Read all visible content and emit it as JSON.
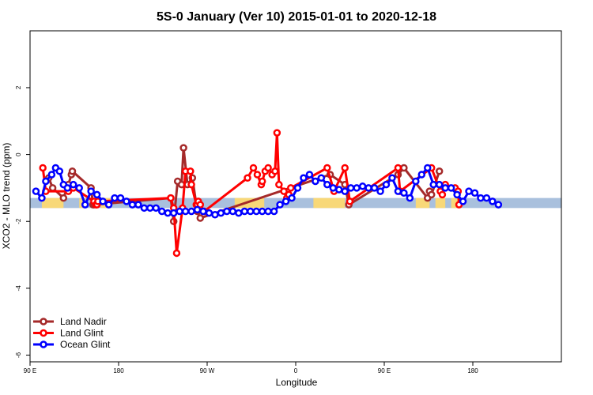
{
  "chart_data": {
    "type": "line",
    "title": "5S-0 January (Ver 10)   2015-01-01 to 2020-12-18",
    "xlabel": "Longitude",
    "ylabel": "XCO2 - MLO trend (ppm)",
    "xlim": [
      -90,
      180
    ],
    "ylim": [
      -6.2,
      3.7
    ],
    "x_ticks": [
      {
        "value": -90,
        "label": "90 E"
      },
      {
        "value": -45,
        "label": "180"
      },
      {
        "value": 0,
        "label": "90 W"
      },
      {
        "value": 45,
        "label": "0"
      },
      {
        "value": 90,
        "label": "90 E"
      },
      {
        "value": 135,
        "label": "180"
      }
    ],
    "y_ticks": [
      {
        "value": -6,
        "label": "-6"
      },
      {
        "value": -4,
        "label": "-4"
      },
      {
        "value": -2,
        "label": "-2"
      },
      {
        "value": 0,
        "label": "0"
      },
      {
        "value": 2,
        "label": "2"
      }
    ],
    "legend_position": "bottom-left",
    "background_band": {
      "y_min": -1.6,
      "y_max": -1.3,
      "color": "#a9c0dd"
    },
    "land_color": "#f8d878",
    "land_segments": [
      {
        "x0": -84,
        "x1": -73
      },
      {
        "x0": -65,
        "x1": -62
      },
      {
        "x0": -54,
        "x1": -49
      },
      {
        "x0": 14,
        "x1": 29
      },
      {
        "x0": 54,
        "x1": 70
      },
      {
        "x0": 106,
        "x1": 113
      },
      {
        "x0": 116,
        "x1": 121
      },
      {
        "x0": 124,
        "x1": 128
      }
    ],
    "series": [
      {
        "name": "Land Nadir",
        "color": "#a52a2a",
        "x": [
          -80.5,
          -78.5,
          -73,
          -70.5,
          -69,
          -68.5,
          -59,
          -58,
          -57.5,
          -18.5,
          -17,
          -15,
          -13,
          -12,
          -10,
          -7.5,
          -5,
          -3.5,
          62.5,
          70,
          72,
          97,
          100,
          112,
          113,
          114,
          118
        ],
        "values": [
          -0.7,
          -1.0,
          -1.3,
          -0.9,
          -0.6,
          -0.5,
          -1.0,
          -1.5,
          -1.5,
          -1.3,
          -2.0,
          -0.8,
          -0.9,
          0.2,
          -0.9,
          -0.7,
          -1.7,
          -1.9,
          -0.6,
          -0.9,
          -1.5,
          -0.6,
          -0.4,
          -1.3,
          -1.1,
          -1.2,
          -0.5
        ]
      },
      {
        "name": "Land Glint",
        "color": "#ff0000",
        "x": [
          -83.5,
          -82,
          -70.5,
          -69,
          -68,
          -57.5,
          -56.5,
          -56,
          -55.5,
          -18.5,
          -17,
          -15.5,
          -12.5,
          -11,
          -8.5,
          -8,
          -5.5,
          -5,
          -4.5,
          -3.5,
          -1.5,
          20.5,
          23.5,
          25.5,
          27.5,
          28,
          29.5,
          31,
          33,
          34.5,
          35.5,
          36.5,
          39,
          40.5,
          41.5,
          42.5,
          61,
          64.5,
          70,
          72.5,
          97,
          98,
          114,
          118.5,
          119.5,
          121,
          126,
          127.5,
          128
        ],
        "values": [
          -0.4,
          -1.1,
          -1.1,
          -1.0,
          -1.0,
          -1.4,
          -1.5,
          -1.5,
          -1.4,
          -1.3,
          -1.6,
          -2.95,
          -1.6,
          -0.5,
          -0.5,
          -0.9,
          -1.5,
          -1.5,
          -1.4,
          -1.5,
          -1.7,
          -0.7,
          -0.4,
          -0.6,
          -0.9,
          -0.8,
          -0.5,
          -0.4,
          -0.6,
          -0.5,
          0.65,
          -0.9,
          -1.1,
          -1.3,
          -1.2,
          -1.0,
          -0.4,
          -1.1,
          -0.4,
          -1.4,
          -0.4,
          -1.1,
          -0.4,
          -1.1,
          -1.2,
          -0.9,
          -1.0,
          -1.1,
          -1.5
        ]
      },
      {
        "name": "Ocean Glint",
        "color": "#0000ff",
        "x": [
          -87,
          -84,
          -82,
          -79,
          -77,
          -75,
          -73,
          -71,
          -68,
          -65,
          -62,
          -59,
          -56,
          -53,
          -50,
          -47,
          -44,
          -41,
          -38,
          -35,
          -32,
          -29,
          -26,
          -23,
          -20,
          -17,
          -14,
          -11,
          -8,
          -5,
          -2,
          1,
          4,
          7,
          10,
          13,
          16,
          19,
          22,
          25,
          28,
          31,
          34,
          37,
          40,
          43,
          46,
          49,
          52,
          55,
          58,
          61,
          64,
          67,
          70,
          73,
          76,
          79,
          82,
          85,
          88,
          91,
          94,
          97,
          100,
          103,
          106,
          109,
          112,
          115,
          118,
          121,
          124,
          127,
          130,
          133,
          136,
          139,
          142,
          145,
          148
        ],
        "values": [
          -1.1,
          -1.3,
          -0.8,
          -0.6,
          -0.4,
          -0.5,
          -0.9,
          -1.0,
          -0.9,
          -1.0,
          -1.5,
          -1.1,
          -1.2,
          -1.4,
          -1.5,
          -1.3,
          -1.3,
          -1.4,
          -1.5,
          -1.5,
          -1.6,
          -1.6,
          -1.6,
          -1.7,
          -1.75,
          -1.75,
          -1.7,
          -1.7,
          -1.7,
          -1.65,
          -1.7,
          -1.75,
          -1.8,
          -1.75,
          -1.7,
          -1.7,
          -1.75,
          -1.7,
          -1.7,
          -1.7,
          -1.7,
          -1.7,
          -1.7,
          -1.5,
          -1.4,
          -1.3,
          -1.0,
          -0.7,
          -0.6,
          -0.8,
          -0.7,
          -0.9,
          -1.0,
          -1.05,
          -1.1,
          -1.0,
          -1.0,
          -0.95,
          -1.0,
          -1.0,
          -1.1,
          -0.9,
          -0.7,
          -1.1,
          -1.15,
          -1.3,
          -0.8,
          -0.6,
          -0.4,
          -0.9,
          -0.9,
          -1.0,
          -1.0,
          -1.2,
          -1.4,
          -1.1,
          -1.15,
          -1.3,
          -1.3,
          -1.4,
          -1.5
        ]
      }
    ]
  }
}
